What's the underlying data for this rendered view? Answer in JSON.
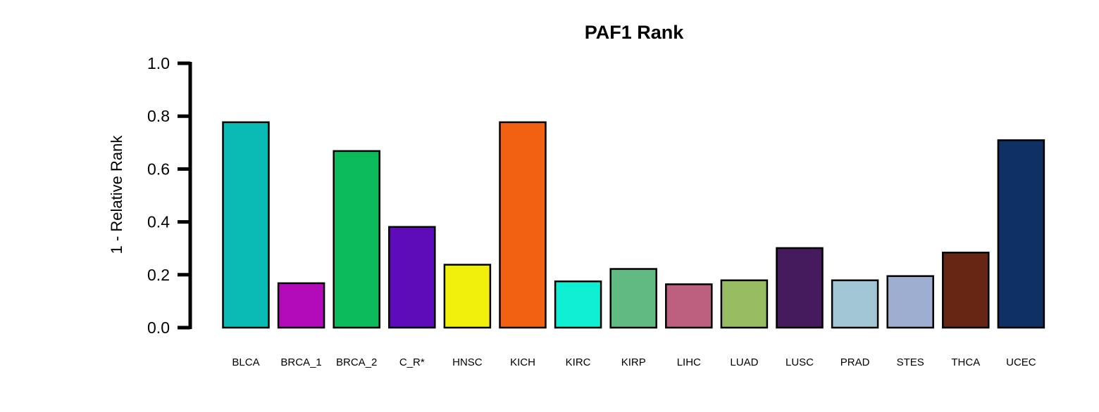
{
  "chart_data": {
    "type": "bar",
    "title": "PAF1 Rank",
    "xlabel": "",
    "ylabel": "1 - Relative Rank",
    "ylim": [
      0,
      1.0
    ],
    "yticks": [
      "0.0",
      "0.2",
      "0.4",
      "0.6",
      "0.8",
      "1.0"
    ],
    "grid": false,
    "legend": "none",
    "categories": [
      "BLCA",
      "BRCA_1",
      "BRCA_2",
      "C_R*",
      "HNSC",
      "KICH",
      "KIRC",
      "KIRP",
      "LIHC",
      "LUAD",
      "LUSC",
      "PRAD",
      "STES",
      "THCA",
      "UCEC"
    ],
    "values": [
      0.777,
      0.168,
      0.668,
      0.381,
      0.238,
      0.777,
      0.175,
      0.222,
      0.164,
      0.179,
      0.301,
      0.179,
      0.195,
      0.284,
      0.709
    ],
    "colors": [
      "#0ABAB5",
      "#B40BBA",
      "#0BBA5B",
      "#5E0BBA",
      "#EFEF0B",
      "#F26111",
      "#0FEDD2",
      "#61BA82",
      "#BD6080",
      "#98BC61",
      "#451B5E",
      "#A2C6D4",
      "#9EAED0",
      "#672513",
      "#0F3065"
    ]
  }
}
